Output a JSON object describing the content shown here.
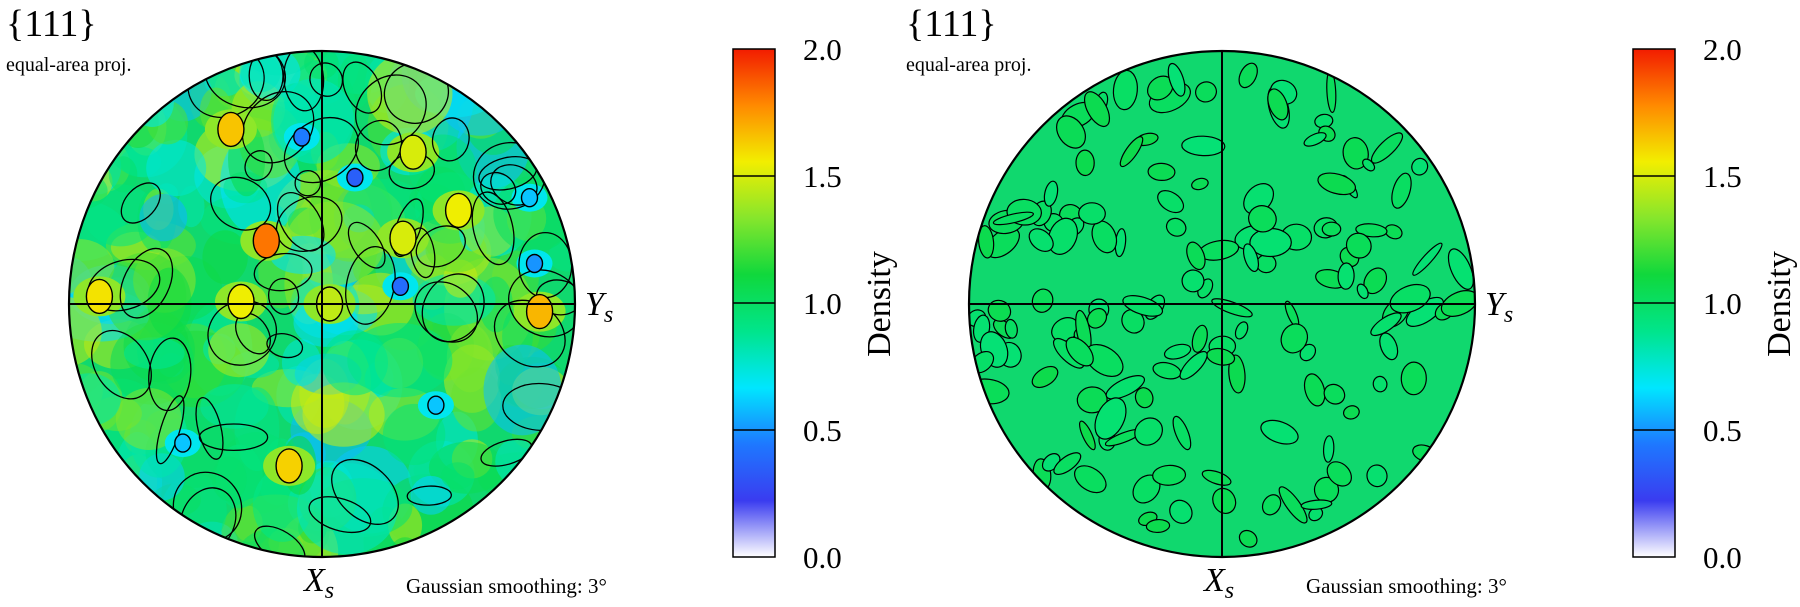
{
  "chart_data": [
    {
      "type": "heatmap",
      "title": "{111}",
      "subtitle": "equal-area proj.",
      "annotation": "Gaussian smoothing: 3°",
      "x_axis_label": {
        "main": "X",
        "sub": "s"
      },
      "y_axis_label": {
        "main": "Y",
        "sub": "s"
      },
      "colorbar": {
        "label": "Density",
        "range": [
          0.0,
          2.0
        ],
        "ticks": [
          "2.0",
          "1.5",
          "1.0",
          "0.5",
          "0.0"
        ],
        "tick_values": [
          2.0,
          1.5,
          1.0,
          0.5,
          0.0
        ],
        "contour_levels": [
          0.5,
          1.0,
          1.5
        ],
        "colormap": [
          "#ffffff",
          "#3a3cf0",
          "#1e78ff",
          "#00e6ff",
          "#00e58c",
          "#10d83c",
          "#86e62c",
          "#f2ee00",
          "#ff8a00",
          "#f21c00"
        ]
      },
      "field": {
        "description_level": "noisy",
        "mean": 1.0,
        "peaks": [
          {
            "x": -0.22,
            "y": 0.25,
            "v": 1.82
          },
          {
            "x": -0.36,
            "y": 0.69,
            "v": 1.65
          },
          {
            "x": -0.13,
            "y": -0.64,
            "v": 1.62
          },
          {
            "x": 0.86,
            "y": -0.03,
            "v": 1.68
          },
          {
            "x": -0.88,
            "y": 0.03,
            "v": 1.58
          },
          {
            "x": -0.32,
            "y": 0.01,
            "v": 1.55
          },
          {
            "x": 0.54,
            "y": 0.37,
            "v": 1.55
          },
          {
            "x": 0.36,
            "y": 0.6,
            "v": 1.5
          },
          {
            "x": 0.32,
            "y": 0.26,
            "v": 1.5
          },
          {
            "x": 0.03,
            "y": 0.0,
            "v": 1.45
          },
          {
            "x": 0.13,
            "y": 0.5,
            "v": 0.35
          },
          {
            "x": 0.31,
            "y": 0.07,
            "v": 0.4
          },
          {
            "x": 0.84,
            "y": 0.16,
            "v": 0.5
          },
          {
            "x": -0.08,
            "y": 0.66,
            "v": 0.45
          },
          {
            "x": 0.45,
            "y": -0.4,
            "v": 0.6
          },
          {
            "x": -0.55,
            "y": -0.55,
            "v": 0.6
          },
          {
            "x": 0.82,
            "y": 0.42,
            "v": 0.6
          }
        ]
      }
    },
    {
      "type": "heatmap",
      "title": "{111}",
      "subtitle": "equal-area proj.",
      "annotation": "Gaussian smoothing: 3°",
      "x_axis_label": {
        "main": "X",
        "sub": "s"
      },
      "y_axis_label": {
        "main": "Y",
        "sub": "s"
      },
      "colorbar": {
        "label": "Density",
        "range": [
          0.0,
          2.0
        ],
        "ticks": [
          "2.0",
          "1.5",
          "1.0",
          "0.5",
          "0.0"
        ],
        "tick_values": [
          2.0,
          1.5,
          1.0,
          0.5,
          0.0
        ],
        "contour_levels": [
          0.5,
          1.0,
          1.5
        ],
        "colormap": [
          "#ffffff",
          "#3a3cf0",
          "#1e78ff",
          "#00e6ff",
          "#00e58c",
          "#10d83c",
          "#86e62c",
          "#f2ee00",
          "#ff8a00",
          "#f21c00"
        ]
      },
      "field": {
        "description_level": "uniform",
        "mean": 1.0,
        "peaks": []
      }
    }
  ]
}
